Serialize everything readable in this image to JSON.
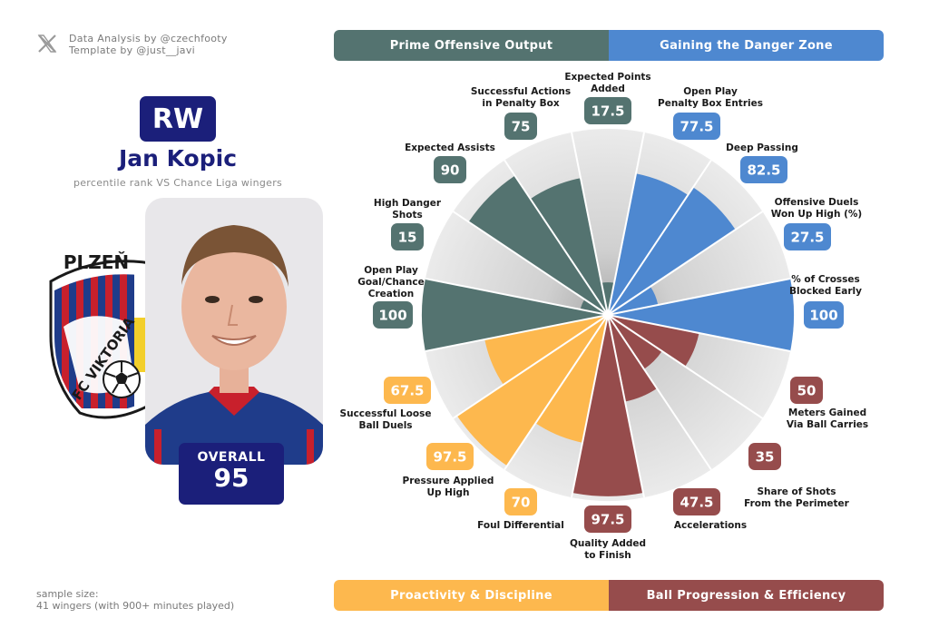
{
  "credits": {
    "line1": "Data Analysis by @czechfooty",
    "line2": "Template by @just__javi",
    "icon": "x-logo-icon"
  },
  "player": {
    "position": "RW",
    "name": "Jan Kopic",
    "subtitle": "percentile rank VS Chance Liga wingers",
    "overall_label": "OVERALL",
    "overall_value": "95",
    "club_text_1": "PLZEŇ",
    "club_text_2": "FC VIKTORIA"
  },
  "sample": {
    "line1": "sample size:",
    "line2": "41 wingers (with 900+ minutes played)"
  },
  "sections": {
    "top_left": "Prime Offensive Output",
    "top_right": "Gaining the Danger Zone",
    "bottom_left": "Proactivity & Discipline",
    "bottom_right": "Ball Progression & Efficiency"
  },
  "colors": {
    "offensive": "#547370",
    "danger_zone": "#4e88d0",
    "proactivity": "#fdb84e",
    "progression": "#964c4c",
    "background_wedge": "#e4e3e3",
    "navy": "#1b1f7a"
  },
  "chart_data": {
    "type": "radar-bar",
    "title": "Jan Kopic",
    "subtitle": "percentile rank VS Chance Liga wingers",
    "range": [
      0,
      100
    ],
    "categories": [
      {
        "label": [
          "Expected Points",
          "Added"
        ],
        "value": 17.5,
        "group": "offensive"
      },
      {
        "label": [
          "Open Play",
          "Penalty Box Entries"
        ],
        "value": 77.5,
        "group": "danger_zone"
      },
      {
        "label": [
          "Deep Passing"
        ],
        "value": 82.5,
        "group": "danger_zone"
      },
      {
        "label": [
          "Offensive Duels",
          "Won Up High (%)"
        ],
        "value": 27.5,
        "group": "danger_zone"
      },
      {
        "label": [
          "% of Crosses",
          "Blocked Early"
        ],
        "value": 100,
        "group": "danger_zone"
      },
      {
        "label": [
          "Meters Gained",
          "Via Ball Carries"
        ],
        "value": 50,
        "group": "progression"
      },
      {
        "label": [
          "Share of Shots",
          "From the Perimeter"
        ],
        "value": 35,
        "group": "progression"
      },
      {
        "label": [
          "Accelerations"
        ],
        "value": 47.5,
        "group": "progression"
      },
      {
        "label": [
          "Quality Added",
          "to Finish"
        ],
        "value": 97.5,
        "group": "progression"
      },
      {
        "label": [
          "Foul Differential"
        ],
        "value": 70,
        "group": "proactivity"
      },
      {
        "label": [
          "Pressure Applied",
          "Up High"
        ],
        "value": 97.5,
        "group": "proactivity"
      },
      {
        "label": [
          "Successful Loose",
          "Ball Duels"
        ],
        "value": 67.5,
        "group": "proactivity"
      },
      {
        "label": [
          "Open Play",
          "Goal/Chance",
          "Creation"
        ],
        "value": 100,
        "group": "offensive"
      },
      {
        "label": [
          "High Danger",
          "Shots"
        ],
        "value": 15,
        "group": "offensive"
      },
      {
        "label": [
          "Expected Assists"
        ],
        "value": 90,
        "group": "offensive"
      },
      {
        "label": [
          "Successful Actions",
          "in Penalty Box"
        ],
        "value": 75,
        "group": "offensive"
      }
    ],
    "value_labels": [
      "17.5",
      "77.5",
      "82.5",
      "27.5",
      "100",
      "50",
      "35",
      "47.5",
      "97.5",
      "70",
      "97.5",
      "67.5",
      "100",
      "15",
      "90",
      "75"
    ]
  }
}
